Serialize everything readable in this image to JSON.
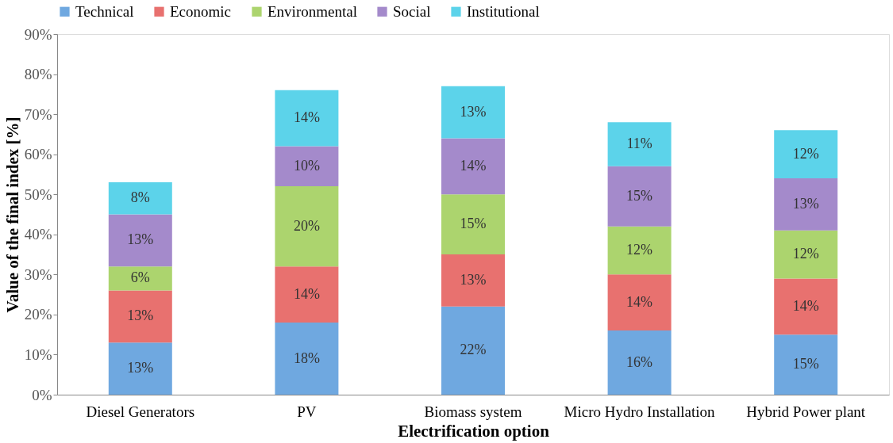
{
  "chart_data": {
    "type": "bar",
    "stacked": true,
    "xlabel": "Electrification option",
    "ylabel": "Value of the final index [%]",
    "categories": [
      "Diesel Generators",
      "PV",
      "Biomass system",
      "Micro Hydro Installation",
      "Hybrid Power plant"
    ],
    "series": [
      {
        "name": "Technical",
        "color": "#6fa8e0",
        "values": [
          13,
          18,
          22,
          16,
          15
        ],
        "value_labels": [
          "13%",
          "18%",
          "22%",
          "16%",
          "15%"
        ]
      },
      {
        "name": "Economic",
        "color": "#e8716f",
        "values": [
          13,
          14,
          13,
          14,
          14
        ],
        "value_labels": [
          "13%",
          "14%",
          "13%",
          "14%",
          "14%"
        ]
      },
      {
        "name": "Environmental",
        "color": "#acd46e",
        "values": [
          6,
          20,
          15,
          12,
          12
        ],
        "value_labels": [
          "6%",
          "20%",
          "15%",
          "12%",
          "12%"
        ]
      },
      {
        "name": "Social",
        "color": "#a48acb",
        "values": [
          13,
          10,
          14,
          15,
          13
        ],
        "value_labels": [
          "13%",
          "10%",
          "14%",
          "15%",
          "13%"
        ]
      },
      {
        "name": "Institutional",
        "color": "#5cd3ea",
        "values": [
          8,
          14,
          13,
          11,
          12
        ],
        "value_labels": [
          "8%",
          "14%",
          "13%",
          "11%",
          "12%"
        ]
      }
    ],
    "ylim": [
      0,
      90
    ],
    "yticks": [
      {
        "value": 0,
        "label": "0%"
      },
      {
        "value": 10,
        "label": "10%"
      },
      {
        "value": 20,
        "label": "20%"
      },
      {
        "value": 30,
        "label": "30%"
      },
      {
        "value": 40,
        "label": "40%"
      },
      {
        "value": 50,
        "label": "50%"
      },
      {
        "value": 60,
        "label": "60%"
      },
      {
        "value": 70,
        "label": "70%"
      },
      {
        "value": 80,
        "label": "80%"
      },
      {
        "value": 90,
        "label": "90%"
      }
    ],
    "grid": false,
    "legend": "top"
  }
}
